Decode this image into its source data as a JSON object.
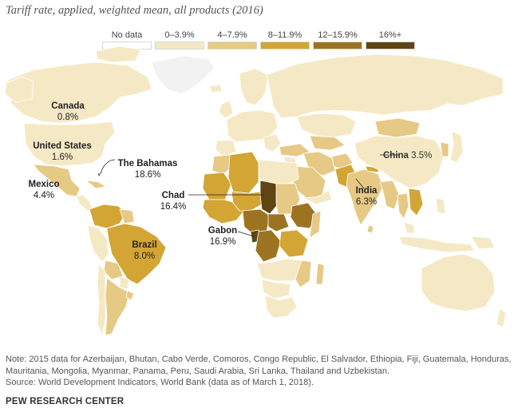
{
  "title": "Tariff rate, applied, weighted mean, all products (2016)",
  "legend": [
    {
      "label": "No data",
      "color": "#ffffff"
    },
    {
      "label": "0–3.9%",
      "color": "#f5e9c5"
    },
    {
      "label": "4–7.9%",
      "color": "#e6c985"
    },
    {
      "label": "8–11.9%",
      "color": "#d3a535"
    },
    {
      "label": "12–15.9%",
      "color": "#9c7421"
    },
    {
      "label": "16%+",
      "color": "#5e4513"
    }
  ],
  "map_colors": {
    "ocean": "#ffffff",
    "border": "#ffffff",
    "no_data": "#f2f2f2"
  },
  "labels": {
    "canada": {
      "name": "Canada",
      "value": "0.8%"
    },
    "united_states": {
      "name": "United States",
      "value": "1.6%"
    },
    "mexico": {
      "name": "Mexico",
      "value": "4.4%"
    },
    "bahamas": {
      "name": "The Bahamas",
      "value": "18.6%"
    },
    "brazil": {
      "name": "Brazil",
      "value": "8.0%"
    },
    "chad": {
      "name": "Chad",
      "value": "16.4%"
    },
    "gabon": {
      "name": "Gabon",
      "value": "16.9%"
    },
    "china": {
      "name": "China",
      "value": "3.5%"
    },
    "india": {
      "name": "India",
      "value": "6.3%"
    }
  },
  "footer": {
    "note": "Note: 2015 data for Azerbaijan, Bhutan, Cabo Verde, Comoros, Congo Republic, El Salvador, Ethiopia, Fiji, Guatemala, Honduras, Mauritania, Mongolia, Myanmar, Panama, Peru, Saudi Arabia, Sri Lanka, Thailand and Uzbekistan.",
    "source": "Source: World Development Indicators, World Bank (data as of March 1, 2018).",
    "brand": "PEW RESEARCH CENTER"
  }
}
